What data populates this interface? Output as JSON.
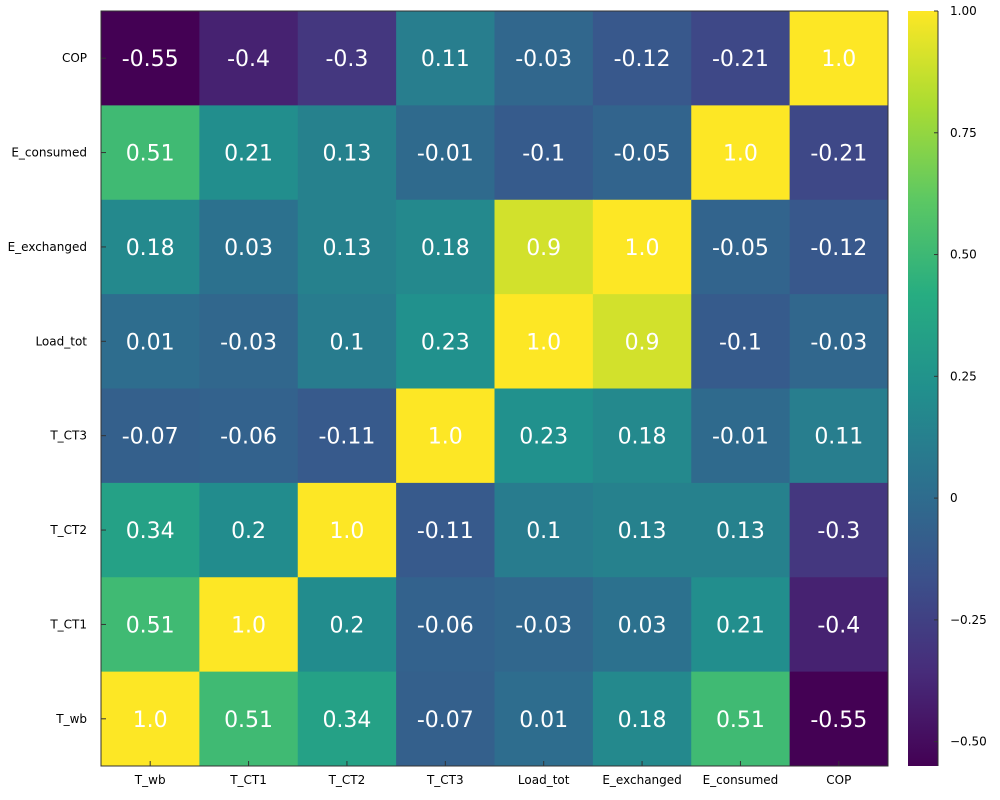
{
  "chart_data": {
    "type": "heatmap",
    "title": "",
    "xlabel": "",
    "ylabel": "",
    "x_categories": [
      "T_wb",
      "T_CT1",
      "T_CT2",
      "T_CT3",
      "Load_tot",
      "E_exchanged",
      "E_consumed",
      "COP"
    ],
    "y_categories": [
      "COP",
      "E_consumed",
      "E_exchanged",
      "Load_tot",
      "T_CT3",
      "T_CT2",
      "T_CT1",
      "T_wb"
    ],
    "values": [
      [
        -0.55,
        -0.4,
        -0.3,
        0.11,
        -0.03,
        -0.12,
        -0.21,
        1.0
      ],
      [
        0.51,
        0.21,
        0.13,
        -0.01,
        -0.1,
        -0.05,
        1.0,
        -0.21
      ],
      [
        0.18,
        0.03,
        0.13,
        0.18,
        0.9,
        1.0,
        -0.05,
        -0.12
      ],
      [
        0.01,
        -0.03,
        0.1,
        0.23,
        1.0,
        0.9,
        -0.1,
        -0.03
      ],
      [
        -0.07,
        -0.06,
        -0.11,
        1.0,
        0.23,
        0.18,
        -0.01,
        0.11
      ],
      [
        0.34,
        0.2,
        1.0,
        -0.11,
        0.1,
        0.13,
        0.13,
        -0.3
      ],
      [
        0.51,
        1.0,
        0.2,
        -0.06,
        -0.03,
        0.03,
        0.21,
        -0.4
      ],
      [
        1.0,
        0.51,
        0.34,
        -0.07,
        0.01,
        0.18,
        0.51,
        -0.55
      ]
    ],
    "cell_labels": [
      [
        "-0.55",
        "-0.4",
        "-0.3",
        "0.11",
        "-0.03",
        "-0.12",
        "-0.21",
        "1.0"
      ],
      [
        "0.51",
        "0.21",
        "0.13",
        "-0.01",
        "-0.1",
        "-0.05",
        "1.0",
        "-0.21"
      ],
      [
        "0.18",
        "0.03",
        "0.13",
        "0.18",
        "0.9",
        "1.0",
        "-0.05",
        "-0.12"
      ],
      [
        "0.01",
        "-0.03",
        "0.1",
        "0.23",
        "1.0",
        "0.9",
        "-0.1",
        "-0.03"
      ],
      [
        "-0.07",
        "-0.06",
        "-0.11",
        "1.0",
        "0.23",
        "0.18",
        "-0.01",
        "0.11"
      ],
      [
        "0.34",
        "0.2",
        "1.0",
        "-0.11",
        "0.1",
        "0.13",
        "0.13",
        "-0.3"
      ],
      [
        "0.51",
        "1.0",
        "0.2",
        "-0.06",
        "-0.03",
        "0.03",
        "0.21",
        "-0.4"
      ],
      [
        "1.0",
        "0.51",
        "0.34",
        "-0.07",
        "0.01",
        "0.18",
        "0.51",
        "-0.55"
      ]
    ],
    "colormap": "viridis",
    "clim": [
      -0.55,
      1.0
    ],
    "colorbar": {
      "ticks": [
        1.0,
        0.75,
        0.5,
        0.25,
        0,
        -0.25,
        -0.5
      ],
      "tick_labels": [
        "1.00",
        "0.75",
        "0.50",
        "0.25",
        "0",
        "−0.25",
        "−0.50"
      ]
    },
    "grid": false,
    "legend": "colorbar-right"
  }
}
